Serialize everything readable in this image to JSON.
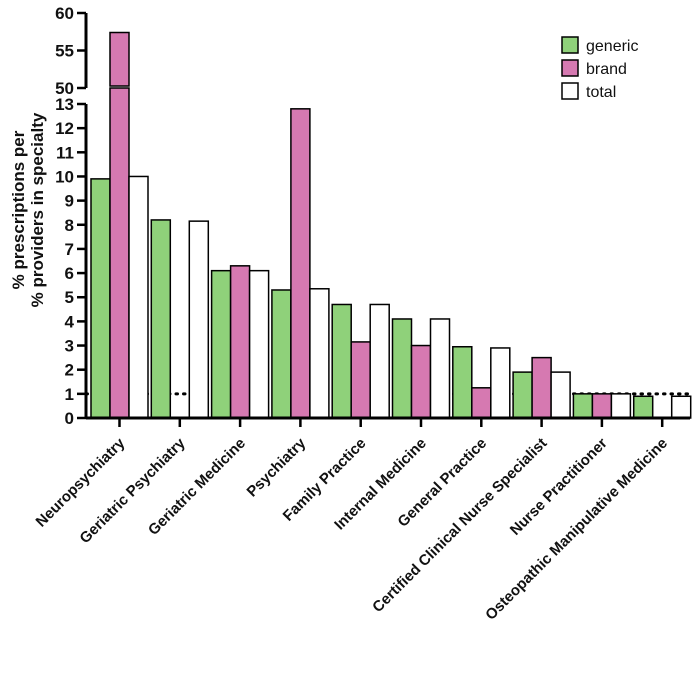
{
  "chart_data": {
    "type": "bar",
    "title": "",
    "xlabel": "",
    "ylabel_lines": [
      "% prescriptions per",
      "% providers in specialty"
    ],
    "categories": [
      "Neuropsychiatry",
      "Geriatric Psychiatry",
      "Geriatric Medicine",
      "Psychiatry",
      "Family Practice",
      "Internal Medicine",
      "General Practice",
      "Certified Clinical Nurse Specialist",
      "Nurse Practitioner",
      "Osteopathic Manipulative Medicine"
    ],
    "series": [
      {
        "name": "generic",
        "color": "#8fd17a",
        "values": [
          9.9,
          8.2,
          6.1,
          5.3,
          4.7,
          4.1,
          2.95,
          1.9,
          1.0,
          0.9
        ]
      },
      {
        "name": "brand",
        "color": "#d679b1",
        "values": [
          57.4,
          0,
          6.3,
          12.8,
          3.15,
          3.0,
          1.25,
          2.5,
          1.0,
          0
        ]
      },
      {
        "name": "total",
        "color": "#ffffff",
        "values": [
          10.0,
          8.15,
          6.1,
          5.35,
          4.7,
          4.1,
          2.9,
          1.9,
          1.0,
          0.9
        ]
      }
    ],
    "y_axis_segments": {
      "lower": {
        "range": [
          0,
          13
        ],
        "ticks": [
          "0",
          "1",
          "2",
          "3",
          "4",
          "5",
          "6",
          "7",
          "8",
          "9",
          "10",
          "11",
          "12",
          "13"
        ]
      },
      "upper": {
        "range": [
          50,
          60
        ],
        "ticks": [
          "50",
          "55",
          "60"
        ]
      }
    },
    "reference_line": {
      "value": 1,
      "style": "dotted"
    },
    "legend": {
      "position": "top-right",
      "labels": [
        "generic",
        "brand",
        "total"
      ]
    }
  }
}
